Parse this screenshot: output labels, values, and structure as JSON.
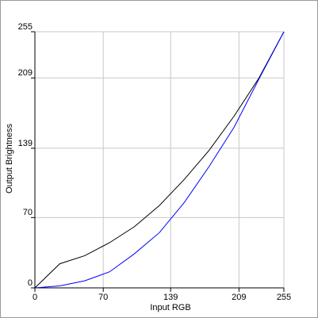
{
  "chart_data": {
    "type": "line",
    "x_label": "Input RGB",
    "y_label": "Output Brightness",
    "x": [
      0,
      25.5,
      51,
      76.5,
      102,
      127.5,
      153,
      178.5,
      204,
      229.5,
      255
    ],
    "series": [
      {
        "color": "#000000",
        "values": [
          0,
          24,
          32,
          45,
          61,
          82,
          108,
          137,
          171,
          209,
          255
        ]
      },
      {
        "color": "#0000ff",
        "values": [
          0,
          2,
          7,
          16,
          34,
          55,
          85,
          121,
          160,
          208,
          255
        ]
      }
    ],
    "xlim": [
      0,
      255
    ],
    "ylim": [
      0,
      255
    ],
    "xticks": [
      0,
      70,
      139,
      209,
      255
    ],
    "yticks": [
      0,
      70,
      139,
      209,
      255
    ],
    "grid": true
  }
}
